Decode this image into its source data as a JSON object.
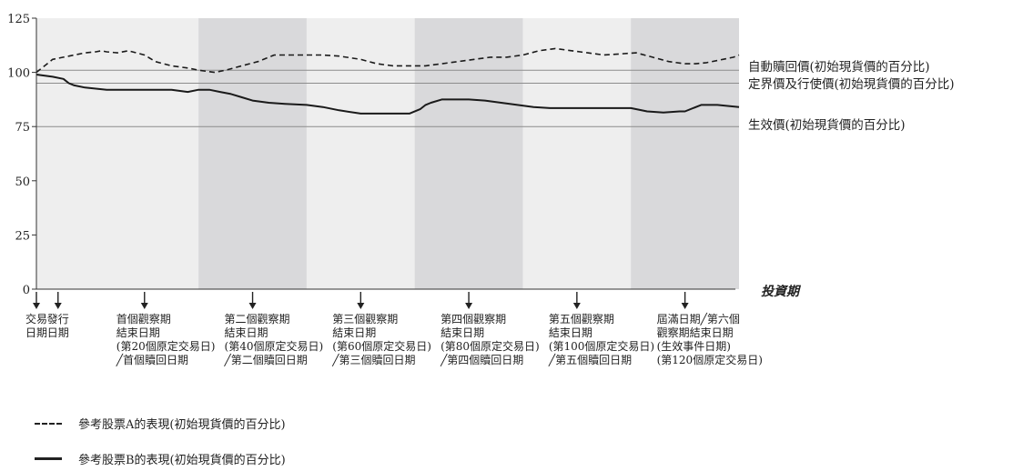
{
  "chart_data": {
    "type": "line",
    "title": "",
    "xlabel": "投資期",
    "ylabel": "",
    "ylim": [
      0,
      125
    ],
    "y_ticks": [
      "0",
      "25",
      "50",
      "75",
      "100",
      "125"
    ],
    "x_range_trading_days": [
      -10,
      120
    ],
    "grid": false,
    "observation_periods": [
      {
        "start": 0,
        "end": 20,
        "shade": "light"
      },
      {
        "start": 20,
        "end": 40,
        "shade": "dark"
      },
      {
        "start": 40,
        "end": 60,
        "shade": "light"
      },
      {
        "start": 60,
        "end": 80,
        "shade": "dark"
      },
      {
        "start": 80,
        "end": 100,
        "shade": "light"
      },
      {
        "start": 100,
        "end": 120,
        "shade": "dark"
      }
    ],
    "reference_lines": [
      {
        "label": "自動贖回價(初始現貨價的百分比)",
        "value": 101
      },
      {
        "label": "定界價及行使價(初始現貨價的百分比)",
        "value": 95
      },
      {
        "label": "生效價(初始現貨價的百分比)",
        "value": 75
      }
    ],
    "x_markers": [
      {
        "x": -10,
        "label": [
          "交易",
          "日期"
        ]
      },
      {
        "x": -6,
        "label": [
          "發行",
          "日期"
        ]
      },
      {
        "x": 10,
        "label": [
          "首個觀察期",
          "結束日期",
          "(第20個原定交易日)",
          "╱首個贖回日期"
        ]
      },
      {
        "x": 30,
        "label": [
          "第二個觀察期",
          "結束日期",
          "(第40個原定交易日)",
          "╱第二個贖回日期"
        ]
      },
      {
        "x": 50,
        "label": [
          "第三個觀察期",
          "結束日期",
          "(第60個原定交易日)",
          "╱第三個贖回日期"
        ]
      },
      {
        "x": 70,
        "label": [
          "第四個觀察期",
          "結束日期",
          "(第80個原定交易日)",
          "╱第四個贖回日期"
        ]
      },
      {
        "x": 90,
        "label": [
          "第五個觀察期",
          "結束日期",
          "(第100個原定交易日)",
          "╱第五個贖回日期"
        ]
      },
      {
        "x": 110,
        "label": [
          "屆滿日期╱第六個",
          "觀察期結束日期",
          "(生效事件日期)",
          "(第120個原定交易日)"
        ]
      }
    ],
    "series": [
      {
        "name": "參考股票A的表現(初始現貨價的百分比)",
        "style": "dashed",
        "x": [
          -10,
          -9,
          -8,
          -7,
          -5,
          -3,
          -1,
          1,
          2,
          3,
          5,
          7,
          10,
          12,
          15,
          18,
          20,
          23,
          25,
          28,
          31,
          34,
          37,
          40,
          43,
          46,
          50,
          53,
          56,
          59,
          62,
          65,
          68,
          71,
          74,
          77,
          80,
          83,
          86,
          89,
          92,
          95,
          98,
          101,
          104,
          107,
          110,
          112,
          114,
          117,
          119,
          120
        ],
        "values": [
          100,
          102,
          104,
          106,
          107,
          108,
          109,
          109.5,
          110,
          109.5,
          109,
          110,
          108,
          105,
          103,
          102,
          101,
          100,
          101,
          103,
          105,
          108,
          108,
          108,
          108,
          107.5,
          106,
          104,
          103,
          103,
          103,
          104,
          105,
          106,
          107,
          107,
          108,
          110,
          111,
          110,
          109,
          108,
          108.5,
          109,
          107,
          105,
          104,
          104,
          104.5,
          106,
          107,
          108
        ]
      },
      {
        "name": "參考股票B的表現(初始現貨價的百分比)",
        "style": "solid",
        "x": [
          -10,
          -7,
          -5,
          -4,
          -3,
          -1,
          1,
          3,
          5,
          7,
          10,
          12,
          15,
          18,
          20,
          22,
          24,
          26,
          28,
          30,
          33,
          36,
          40,
          43,
          46,
          50,
          53,
          56,
          59,
          61,
          62,
          63,
          65,
          67,
          70,
          73,
          76,
          79,
          82,
          85,
          88,
          91,
          94,
          97,
          100,
          103,
          106,
          109,
          110,
          113,
          116,
          120
        ],
        "values": [
          99,
          98,
          97,
          95,
          94,
          93,
          92.5,
          92,
          92,
          92,
          92,
          92,
          92,
          91,
          92,
          92,
          91,
          90,
          88.5,
          87,
          86,
          85.5,
          85,
          84,
          82.5,
          81,
          81,
          81,
          81,
          83,
          85,
          86,
          87.5,
          87.5,
          87.5,
          87,
          86,
          85,
          84,
          83.5,
          83.5,
          83.5,
          83.5,
          83.5,
          83.5,
          82,
          81.5,
          82,
          82,
          85,
          85,
          84
        ]
      }
    ]
  }
}
